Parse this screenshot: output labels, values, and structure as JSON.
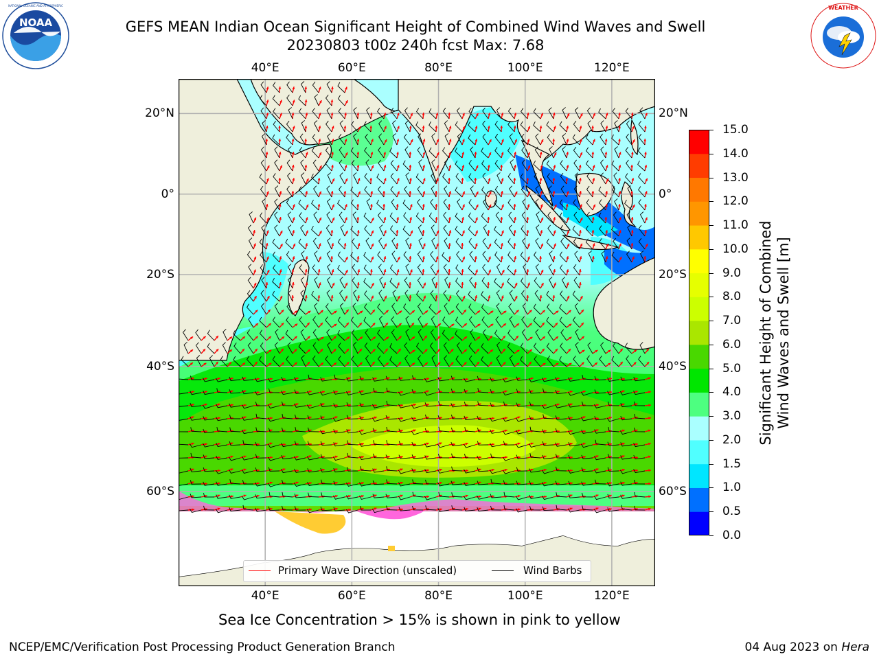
{
  "title": {
    "line1": "GEFS MEAN Indian Ocean Significant Height of Combined Wind Waves and Swell",
    "line2": "20230803 t00z 240h fcst   Max: 7.68"
  },
  "logos": {
    "left": {
      "icon": "noaa-logo",
      "text": "NOAA",
      "ring_text": "NATIONAL OCEANIC AND ATMOSPHERIC ADMINISTRATION · U.S. DEPARTMENT OF COMMERCE"
    },
    "right": {
      "icon": "national-weather-service-logo",
      "ring_text": "NATIONAL WEATHER SERVICE"
    }
  },
  "axes": {
    "lon_ticks": [
      "40°E",
      "60°E",
      "80°E",
      "100°E",
      "120°E"
    ],
    "lon_values": [
      40,
      60,
      80,
      100,
      120
    ],
    "lat_ticks": [
      "20°N",
      "0°",
      "20°S",
      "40°S",
      "60°S"
    ],
    "lat_values": [
      20,
      0,
      -20,
      -40,
      -60
    ],
    "lon_range": [
      20,
      130
    ],
    "lat_range": [
      -70,
      28
    ]
  },
  "colorbar": {
    "label_line1": "Significant Height of Combined",
    "label_line2": "Wind Waves and Swell [m]",
    "levels": [
      "0.0",
      "0.5",
      "1.0",
      "1.5",
      "2.0",
      "3.0",
      "4.0",
      "5.0",
      "6.0",
      "7.0",
      "8.0",
      "9.0",
      "10.0",
      "11.0",
      "12.0",
      "13.0",
      "14.0",
      "15.0"
    ],
    "colors": [
      "#0000ff",
      "#0070ff",
      "#00e6ff",
      "#50ffff",
      "#aaffff",
      "#4dff80",
      "#00e600",
      "#49d800",
      "#aae600",
      "#ccff00",
      "#e6ff00",
      "#ffff00",
      "#ffc800",
      "#ff9600",
      "#ff7800",
      "#ff3c00",
      "#ff0000"
    ]
  },
  "legend": {
    "wave": {
      "label": "Primary Wave Direction (unscaled)",
      "color": "#ff0000"
    },
    "barb": {
      "label": "Wind Barbs",
      "color": "#000000"
    }
  },
  "note": "Sea Ice Concentration > 15% is shown in pink to yellow",
  "footer": {
    "credit": "NCEP/EMC/Verification Post Processing Product Generation Branch",
    "date_prefix": "04 Aug 2023 on ",
    "machine": "Hera"
  },
  "colors": {
    "land": "#efefdc",
    "ice_pink": "#ff66dd",
    "ice_yellow": "#ffcc33",
    "grid": "#b0b0b0"
  }
}
